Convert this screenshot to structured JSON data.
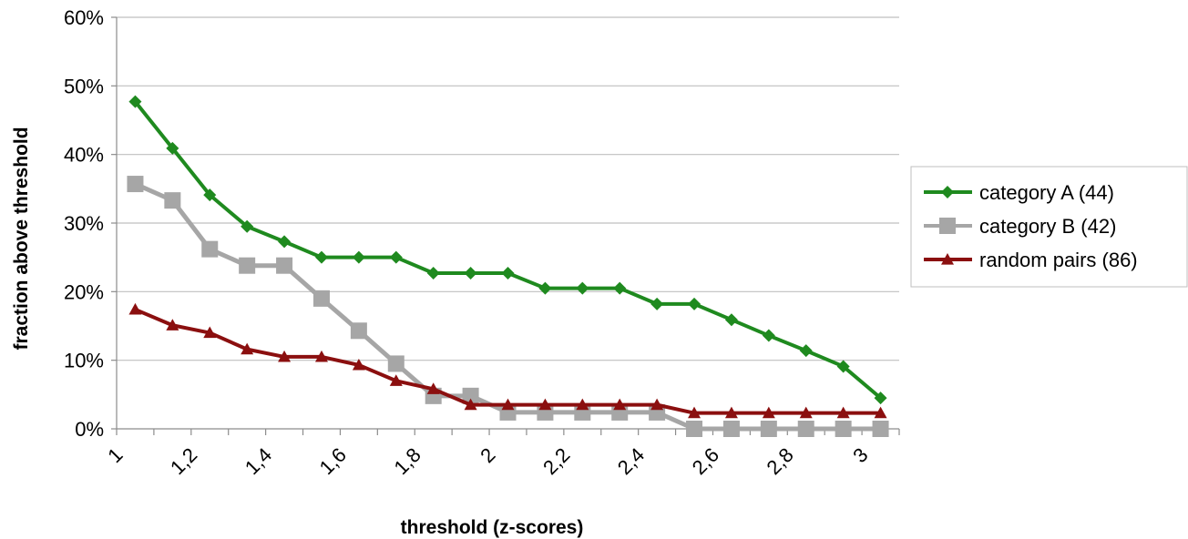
{
  "chart_data": {
    "type": "line",
    "title": "",
    "xlabel": "threshold (z-scores)",
    "ylabel": "fraction above threshold",
    "x": [
      1.05,
      1.15,
      1.25,
      1.35,
      1.45,
      1.55,
      1.65,
      1.75,
      1.85,
      1.95,
      2.05,
      2.15,
      2.25,
      2.35,
      2.45,
      2.55,
      2.65,
      2.75,
      2.85,
      2.95,
      3.05
    ],
    "xlim": [
      1,
      3.1
    ],
    "xticks": [
      1,
      1.2,
      1.4,
      1.6,
      1.8,
      2,
      2.2,
      2.4,
      2.6,
      2.8,
      3
    ],
    "xtick_labels": [
      "1",
      "1,2",
      "1,4",
      "1,6",
      "1,8",
      "2",
      "2,2",
      "2,4",
      "2,6",
      "2,8",
      "3"
    ],
    "ylim": [
      0,
      60
    ],
    "yticks": [
      0,
      10,
      20,
      30,
      40,
      50,
      60
    ],
    "ytick_labels": [
      "0%",
      "10%",
      "20%",
      "30%",
      "40%",
      "50%",
      "60%"
    ],
    "grid": "horizontal",
    "legend_position": "right",
    "series": [
      {
        "name": "category A (44)",
        "color": "#1f8a1f",
        "marker": "diamond",
        "values": [
          47.7,
          40.9,
          34.1,
          29.5,
          27.3,
          25.0,
          25.0,
          25.0,
          22.7,
          22.7,
          22.7,
          20.5,
          20.5,
          20.5,
          18.2,
          18.2,
          15.9,
          13.6,
          11.4,
          9.1,
          4.5
        ]
      },
      {
        "name": "category B (42)",
        "color": "#a6a6a6",
        "marker": "square",
        "values": [
          35.7,
          33.3,
          26.2,
          23.8,
          23.8,
          19.0,
          14.3,
          9.5,
          4.8,
          4.8,
          2.4,
          2.4,
          2.4,
          2.4,
          2.4,
          0,
          0,
          0,
          0,
          0,
          0
        ]
      },
      {
        "name": "random pairs (86)",
        "color": "#8b0f0f",
        "marker": "triangle",
        "values": [
          17.4,
          15.1,
          14.0,
          11.6,
          10.5,
          10.5,
          9.3,
          7.0,
          5.8,
          3.5,
          3.5,
          3.5,
          3.5,
          3.5,
          3.5,
          2.3,
          2.3,
          2.3,
          2.3,
          2.3,
          2.3
        ]
      }
    ]
  }
}
